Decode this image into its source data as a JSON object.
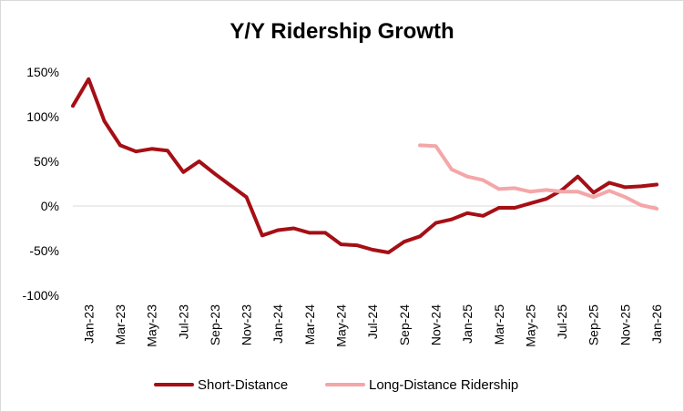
{
  "chart_data": {
    "type": "line",
    "title": "Y/Y Ridership Growth",
    "xlabel": "",
    "ylabel": "",
    "ylim": [
      -100,
      150
    ],
    "yticks": [
      -100,
      -50,
      0,
      50,
      100,
      150
    ],
    "ytick_labels": [
      "-100%",
      "-50%",
      "0%",
      "50%",
      "100%",
      "150%"
    ],
    "x_tick_labels": [
      "Jan-23",
      "Mar-23",
      "May-23",
      "Jul-23",
      "Sep-23",
      "Nov-23",
      "Jan-24",
      "Mar-24",
      "May-24",
      "Jul-24",
      "Sep-24",
      "Nov-24",
      "Jan-25",
      "Mar-25",
      "May-25",
      "Jul-25",
      "Sep-25",
      "Nov-25",
      "Jan-26"
    ],
    "x": [
      "Dec-22",
      "Jan-23",
      "Feb-23",
      "Mar-23",
      "Apr-23",
      "May-23",
      "Jun-23",
      "Jul-23",
      "Aug-23",
      "Sep-23",
      "Oct-23",
      "Nov-23",
      "Dec-23",
      "Jan-24",
      "Feb-24",
      "Mar-24",
      "Apr-24",
      "May-24",
      "Jun-24",
      "Jul-24",
      "Aug-24",
      "Sep-24",
      "Oct-24",
      "Nov-24",
      "Dec-24",
      "Jan-25",
      "Feb-25",
      "Mar-25",
      "Apr-25",
      "May-25",
      "Jun-25",
      "Jul-25",
      "Aug-25",
      "Sep-25",
      "Oct-25",
      "Nov-25",
      "Dec-25",
      "Jan-26"
    ],
    "grid": false,
    "legend_position": "bottom",
    "series": [
      {
        "name": "Short-Distance",
        "color": "#a50f15",
        "values": [
          112,
          142,
          95,
          68,
          61,
          64,
          62,
          38,
          50,
          36,
          23,
          10,
          -33,
          -27,
          -25,
          -30,
          -30,
          -43,
          -44,
          -49,
          -52,
          -40,
          -34,
          -19,
          -15,
          -8,
          -11,
          -2,
          -2,
          3,
          8,
          18,
          33,
          15,
          26,
          21,
          22,
          24
        ]
      },
      {
        "name": "Long-Distance Ridership",
        "color": "#f4a6a8",
        "values": [
          null,
          null,
          null,
          null,
          null,
          null,
          null,
          null,
          null,
          null,
          null,
          null,
          null,
          null,
          null,
          null,
          null,
          null,
          null,
          null,
          null,
          null,
          68,
          67,
          41,
          33,
          29,
          19,
          20,
          16,
          18,
          16,
          16,
          10,
          17,
          10,
          1,
          -3
        ]
      }
    ]
  }
}
